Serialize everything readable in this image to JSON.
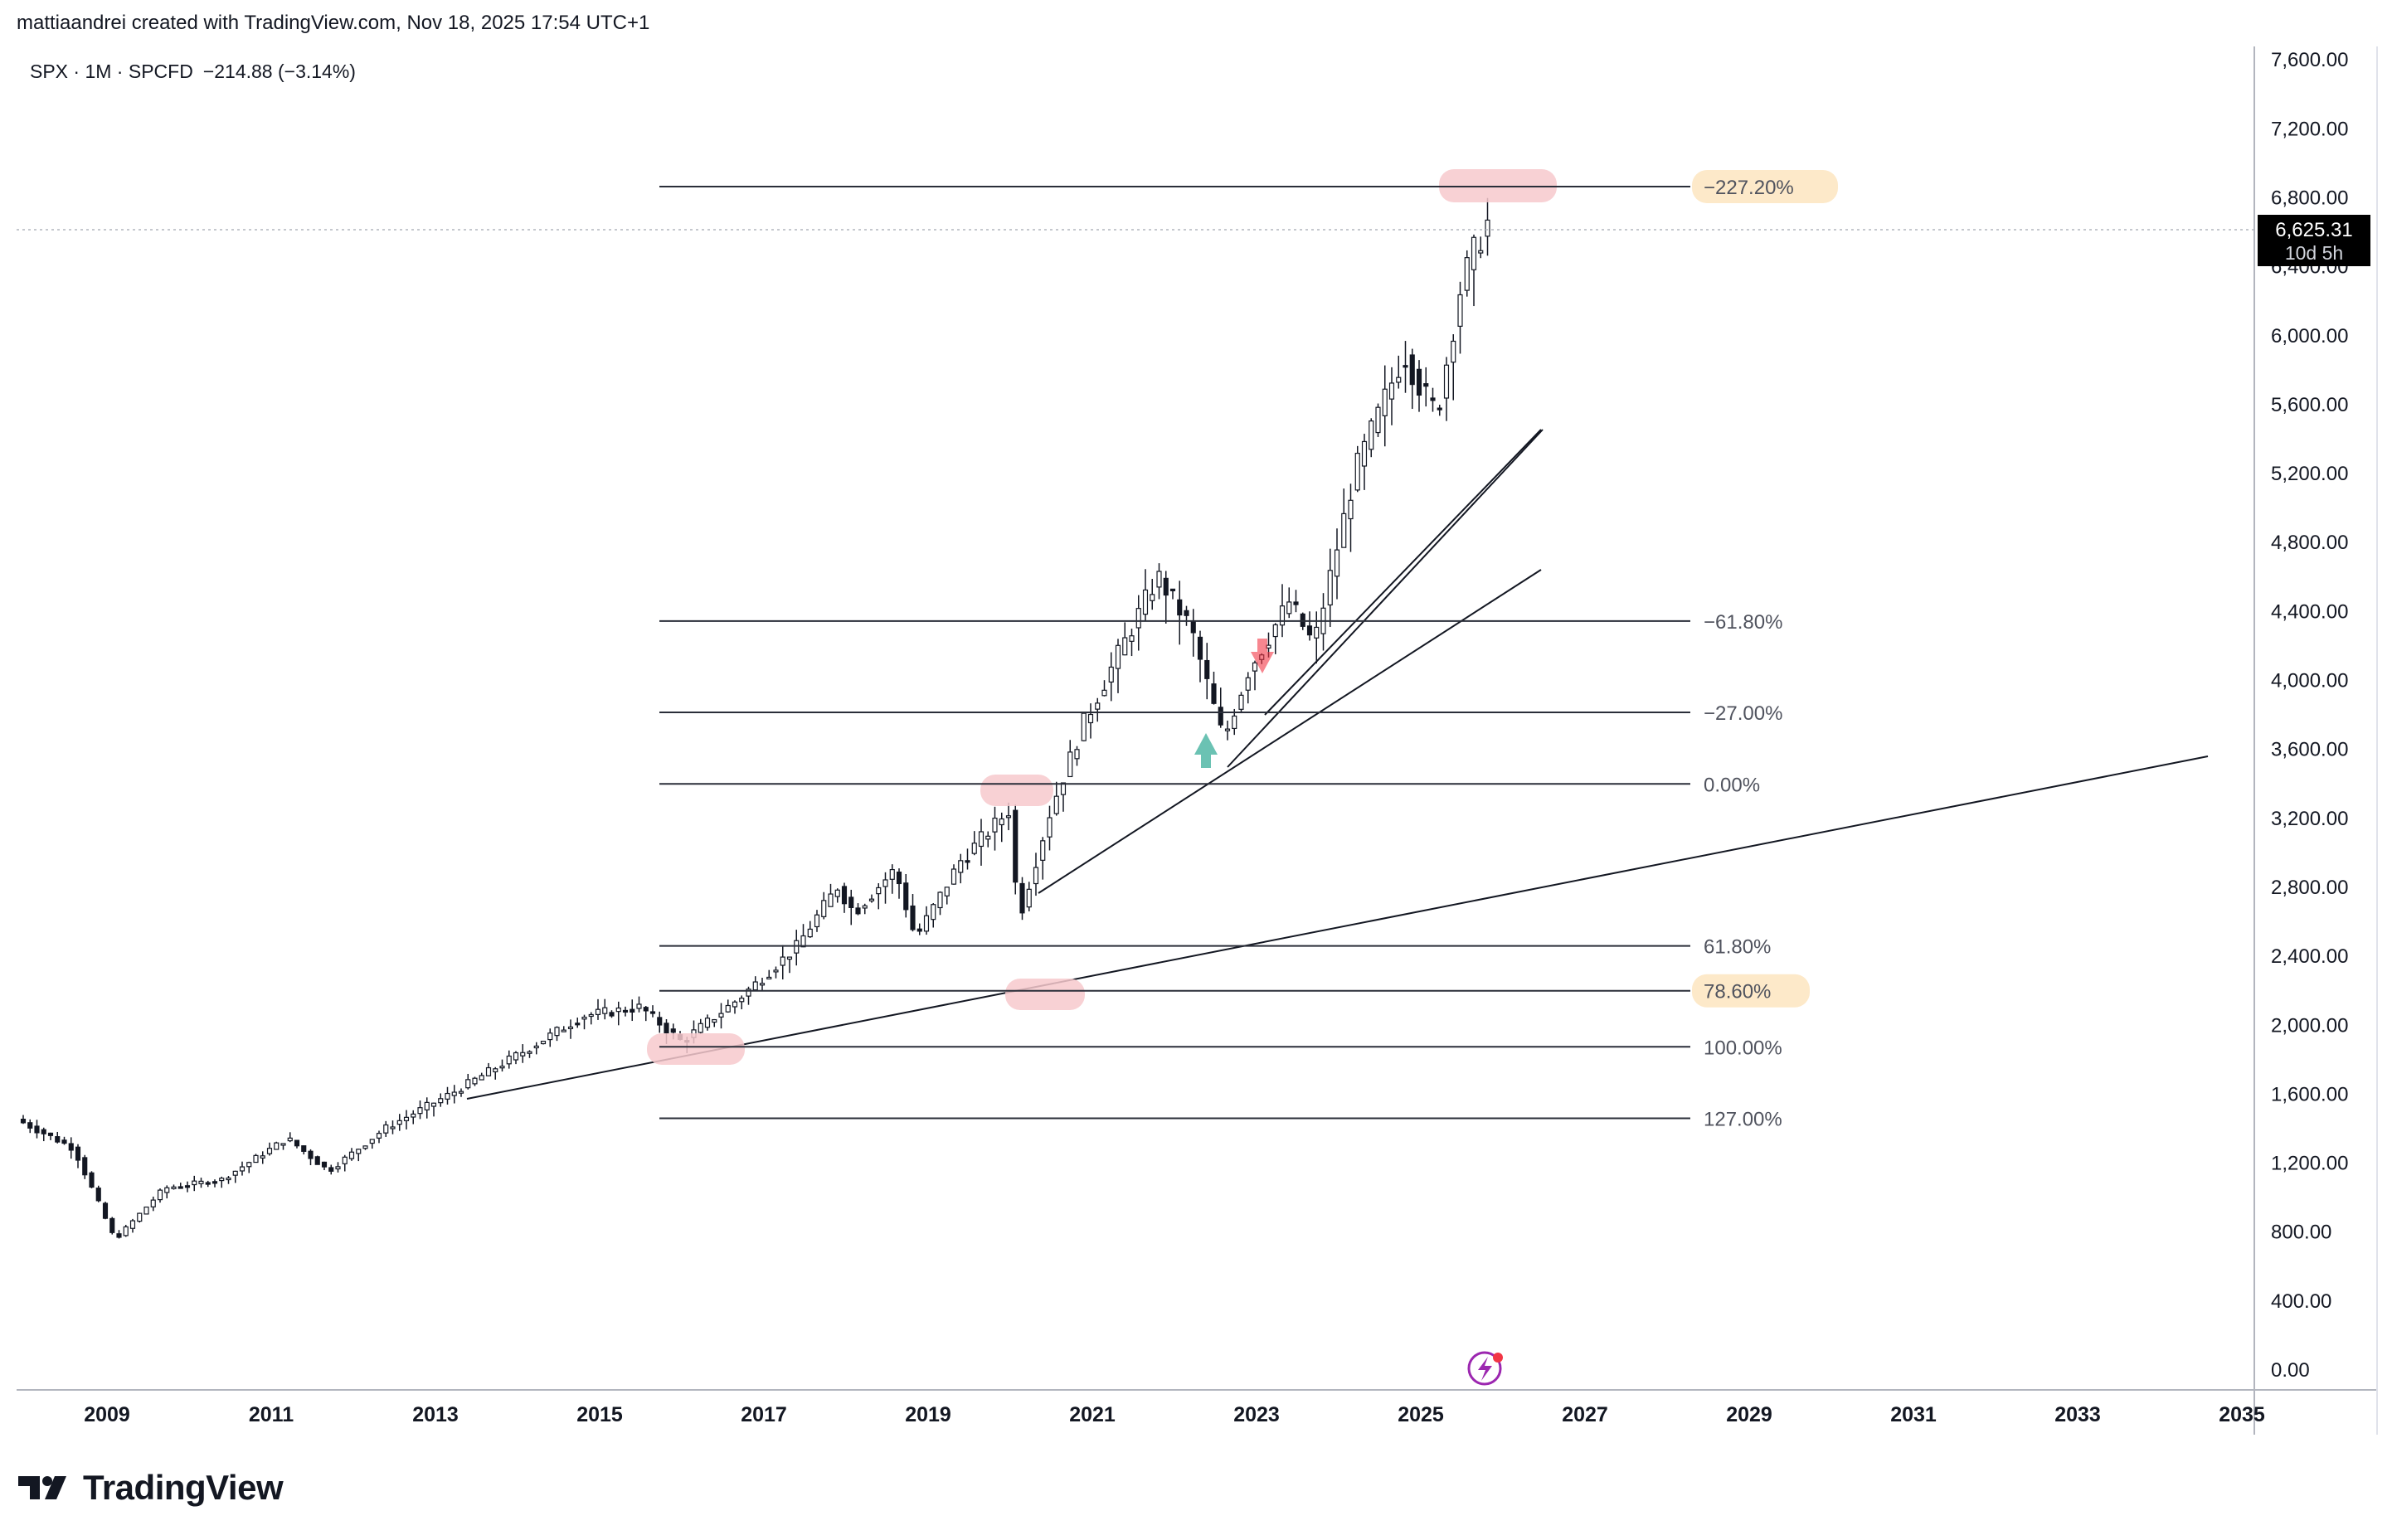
{
  "header": {
    "attribution": "mattiaandrei created with TradingView.com, Nov 18, 2025 17:54 UTC+1"
  },
  "symbol": {
    "legend": "SPX · 1M · SPCFD",
    "change": "−214.88 (−3.14%)"
  },
  "price_scale": {
    "ticks": [
      "7,600.00",
      "7,200.00",
      "6,800.00",
      "6,400.00",
      "6,000.00",
      "5,600.00",
      "5,200.00",
      "4,800.00",
      "4,400.00",
      "4,000.00",
      "3,600.00",
      "3,200.00",
      "2,800.00",
      "2,400.00",
      "2,000.00",
      "1,600.00",
      "1,200.00",
      "800.00",
      "400.00",
      "0.00"
    ],
    "current_price": "6,625.31",
    "countdown": "10d 5h"
  },
  "time_scale": {
    "ticks": [
      "2009",
      "2011",
      "2013",
      "2015",
      "2017",
      "2019",
      "2021",
      "2023",
      "2025",
      "2027",
      "2029",
      "2031",
      "2033",
      "2035"
    ]
  },
  "fib_levels": [
    {
      "label": "−227.20%",
      "price": 6860,
      "highlight": true
    },
    {
      "label": "−61.80%",
      "price": 4340,
      "highlight": false
    },
    {
      "label": "−27.00%",
      "price": 3810,
      "highlight": false
    },
    {
      "label": "0.00%",
      "price": 3395,
      "highlight": false
    },
    {
      "label": "61.80%",
      "price": 2455,
      "highlight": false
    },
    {
      "label": "78.60%",
      "price": 2195,
      "highlight": true
    },
    {
      "label": "100.00%",
      "price": 1870,
      "highlight": false
    },
    {
      "label": "127.00%",
      "price": 1455,
      "highlight": false
    }
  ],
  "colors": {
    "up": "#089981",
    "down": "#f23645",
    "grid_line": "#2a2e39",
    "highlight_box": "#f7c9cc",
    "label_bg": "#fde9c9"
  },
  "icons": {
    "alert": "lightning-icon",
    "logo": "tradingview-logo-icon"
  },
  "brand": {
    "name": "TradingView"
  }
}
